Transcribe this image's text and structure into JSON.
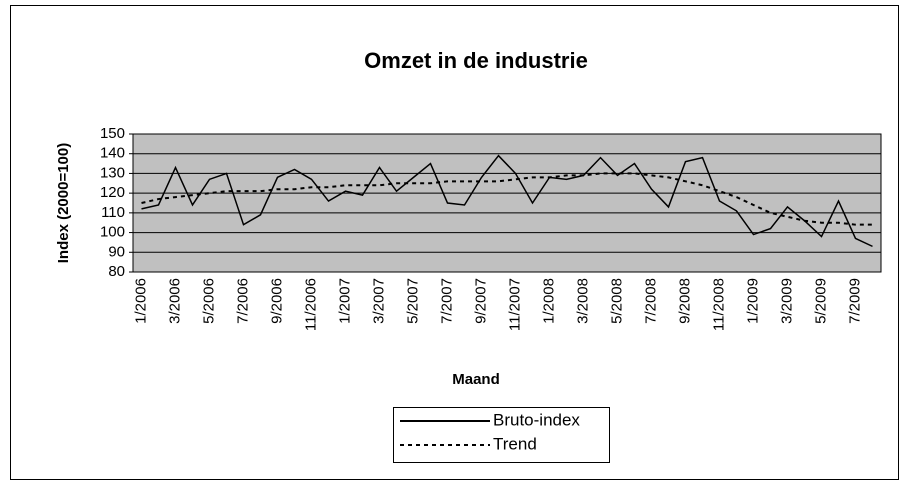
{
  "chart_data": {
    "type": "line",
    "title": "Omzet in de industrie",
    "x_label": "Maand",
    "y_label": "Index (2000=100)",
    "categories": [
      "1/2006",
      null,
      "3/2006",
      null,
      "5/2006",
      null,
      "7/2006",
      null,
      "9/2006",
      null,
      "11/2006",
      null,
      "1/2007",
      null,
      "3/2007",
      null,
      "5/2007",
      null,
      "7/2007",
      null,
      "9/2007",
      null,
      "11/2007",
      null,
      "1/2008",
      null,
      "3/2008",
      null,
      "5/2008",
      null,
      "7/2008",
      null,
      "9/2008",
      null,
      "11/2008",
      null,
      "1/2009",
      null,
      "3/2009",
      null,
      "5/2009",
      null,
      "7/2009",
      null
    ],
    "series": [
      {
        "name": "Bruto-index",
        "color": "#000000",
        "style": "solid",
        "values": [
          112,
          114,
          133,
          114,
          127,
          130,
          104,
          109,
          128,
          132,
          127,
          116,
          121,
          119,
          133,
          121,
          128,
          135,
          115,
          114,
          128,
          139,
          130,
          115,
          128,
          127,
          129,
          138,
          129,
          135,
          122,
          113,
          136,
          138,
          116,
          111,
          99,
          102,
          113,
          106,
          98,
          116,
          97,
          93
        ]
      },
      {
        "name": "Trend",
        "color": "#000000",
        "style": "dotted",
        "values": [
          115,
          117,
          118,
          119,
          120,
          121,
          121,
          121,
          122,
          122,
          123,
          123,
          124,
          124,
          124,
          125,
          125,
          125,
          126,
          126,
          126,
          126,
          127,
          128,
          128,
          129,
          129,
          130,
          130,
          130,
          129,
          128,
          126,
          124,
          121,
          118,
          114,
          110,
          108,
          106,
          105,
          105,
          104,
          104
        ]
      }
    ],
    "ylim": [
      80,
      150
    ],
    "yticks": [
      80,
      90,
      100,
      110,
      120,
      130,
      140,
      150
    ],
    "grid": true,
    "plot_background": "#c0c0c0",
    "legend": "bottom"
  }
}
